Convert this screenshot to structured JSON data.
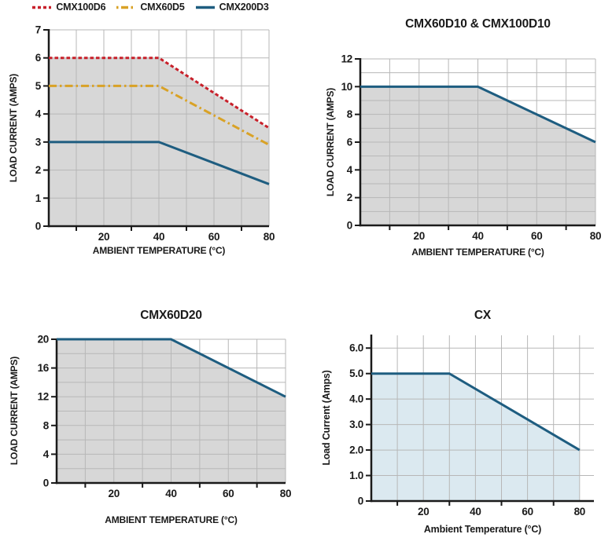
{
  "page": {
    "background": "#ffffff"
  },
  "colors": {
    "grid": "#b7b7b7",
    "axis": "#1a1a1a",
    "text": "#1a1a1a"
  },
  "chart_data": [
    {
      "type": "line",
      "title": "",
      "xlabel": "AMBIENT TEMPERATURE (°C)",
      "ylabel": "LOAD CURRENT (AMPS)",
      "xlim": [
        0,
        80
      ],
      "ylim": [
        0,
        7
      ],
      "legend_position": "top",
      "grid": true,
      "xticks": [
        20,
        40,
        60,
        80
      ],
      "xminor": [
        10,
        30,
        50,
        70
      ],
      "xgrid": [
        10,
        20,
        30,
        40,
        50,
        60,
        70,
        80
      ],
      "yticks": [
        {
          "v": 0,
          "label": "0"
        },
        {
          "v": 1,
          "label": "1"
        },
        {
          "v": 2,
          "label": "2"
        },
        {
          "v": 3,
          "label": "3"
        },
        {
          "v": 4,
          "label": "4"
        },
        {
          "v": 5,
          "label": "5"
        },
        {
          "v": 6,
          "label": "6"
        },
        {
          "v": 7,
          "label": "7"
        }
      ],
      "ygrid": [
        1,
        2,
        3,
        4,
        5,
        6,
        7
      ],
      "series": [
        {
          "name": "CMX100D6",
          "color": "#c8202a",
          "style": "dashed",
          "points": [
            [
              0,
              6
            ],
            [
              40,
              6
            ],
            [
              80,
              3.5
            ]
          ]
        },
        {
          "name": "CMX60D5",
          "color": "#d9a226",
          "style": "dashdot",
          "points": [
            [
              0,
              5
            ],
            [
              40,
              5
            ],
            [
              80,
              2.9
            ]
          ]
        },
        {
          "name": "CMX200D3",
          "color": "#1e5d80",
          "style": "solid",
          "points": [
            [
              0,
              3
            ],
            [
              40,
              3
            ],
            [
              80,
              1.5
            ]
          ]
        }
      ],
      "fill": {
        "series": 0,
        "color": "#d7d7d7"
      }
    },
    {
      "type": "line",
      "title": "CMX60D10 & CMX100D10",
      "xlabel": "AMBIENT TEMPERATURE (°C)",
      "ylabel": "LOAD CURRENT (AMPS)",
      "xlim": [
        0,
        80
      ],
      "ylim": [
        0,
        12
      ],
      "legend_position": "none",
      "grid": true,
      "xticks": [
        20,
        40,
        60,
        80
      ],
      "xminor": [
        10,
        30,
        50,
        70
      ],
      "xgrid": [
        10,
        20,
        30,
        40,
        50,
        60,
        70,
        80
      ],
      "yticks": [
        {
          "v": 0,
          "label": "0"
        },
        {
          "v": 2,
          "label": "2"
        },
        {
          "v": 4,
          "label": "4"
        },
        {
          "v": 6,
          "label": "6"
        },
        {
          "v": 8,
          "label": "8"
        },
        {
          "v": 10,
          "label": "10"
        },
        {
          "v": 12,
          "label": "12"
        }
      ],
      "ygrid": [
        1,
        2,
        3,
        4,
        5,
        6,
        7,
        8,
        9,
        10,
        11,
        12
      ],
      "series": [
        {
          "name": "CMX60D10 & CMX100D10",
          "color": "#1e5d80",
          "style": "solid",
          "points": [
            [
              0,
              10
            ],
            [
              40,
              10
            ],
            [
              80,
              6
            ]
          ]
        }
      ],
      "fill": {
        "series": 0,
        "color": "#d7d7d7"
      }
    },
    {
      "type": "line",
      "title": "CMX60D20",
      "xlabel": "AMBIENT TEMPERATURE (°C)",
      "ylabel": "LOAD CURRENT (AMPS)",
      "xlim": [
        0,
        80
      ],
      "ylim": [
        0,
        20
      ],
      "legend_position": "none",
      "grid": true,
      "xticks": [
        20,
        40,
        60,
        80
      ],
      "xminor": [
        10,
        30,
        50,
        70
      ],
      "xgrid": [
        10,
        20,
        30,
        40,
        50,
        60,
        70,
        80
      ],
      "yticks": [
        {
          "v": 0,
          "label": "0"
        },
        {
          "v": 4,
          "label": "4"
        },
        {
          "v": 8,
          "label": "8"
        },
        {
          "v": 12,
          "label": "12"
        },
        {
          "v": 16,
          "label": "16"
        },
        {
          "v": 20,
          "label": "20"
        }
      ],
      "ygrid": [
        2,
        4,
        6,
        8,
        10,
        12,
        14,
        16,
        18,
        20
      ],
      "series": [
        {
          "name": "CMX60D20",
          "color": "#1e5d80",
          "style": "solid",
          "points": [
            [
              0,
              20
            ],
            [
              40,
              20
            ],
            [
              80,
              12
            ]
          ]
        }
      ],
      "fill": {
        "series": 0,
        "color": "#d7d7d7"
      }
    },
    {
      "type": "line",
      "title": "CX",
      "xlabel": "Ambient Temperature (°C)",
      "ylabel": "Load Current (Amps)",
      "xlim": [
        0,
        85.5
      ],
      "ylim": [
        0,
        6.5
      ],
      "legend_position": "none",
      "grid": true,
      "xticks": [
        20,
        40,
        60,
        80
      ],
      "xminor": [
        10,
        30,
        50,
        70
      ],
      "xgrid": [
        10,
        20,
        30,
        40,
        50,
        60,
        70,
        80
      ],
      "yticks": [
        {
          "v": 0,
          "label": "0"
        },
        {
          "v": 1,
          "label": "1.0"
        },
        {
          "v": 2,
          "label": "2.0"
        },
        {
          "v": 3,
          "label": "3.0"
        },
        {
          "v": 4,
          "label": "4.0"
        },
        {
          "v": 5,
          "label": "5.0"
        },
        {
          "v": 6,
          "label": "6.0"
        }
      ],
      "ygrid": [
        1,
        2,
        3,
        4,
        5,
        6
      ],
      "series": [
        {
          "name": "CX",
          "color": "#1e5d80",
          "style": "solid",
          "points": [
            [
              0,
              5
            ],
            [
              30,
              5
            ],
            [
              80,
              2
            ]
          ]
        }
      ],
      "fill": {
        "series": 0,
        "color": "#dbe9f0"
      }
    }
  ]
}
